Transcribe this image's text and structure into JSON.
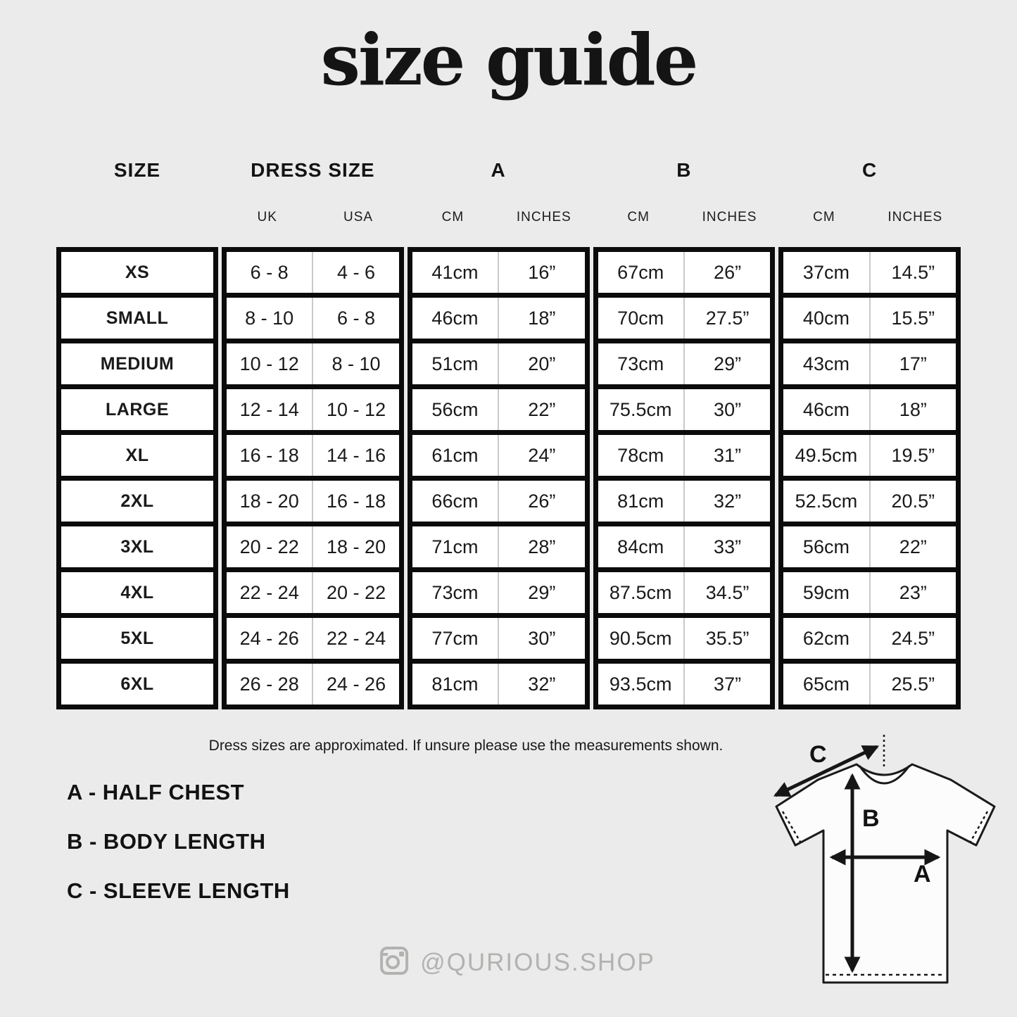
{
  "page": {
    "title": "size guide",
    "background": "#ebebeb"
  },
  "table": {
    "groups": [
      {
        "label": "SIZE",
        "sub": []
      },
      {
        "label": "DRESS SIZE",
        "sub": [
          "UK",
          "USA"
        ]
      },
      {
        "label": "A",
        "sub": [
          "CM",
          "INCHES"
        ]
      },
      {
        "label": "B",
        "sub": [
          "CM",
          "INCHES"
        ]
      },
      {
        "label": "C",
        "sub": [
          "CM",
          "INCHES"
        ]
      }
    ],
    "rows": [
      {
        "size": "XS",
        "values": [
          "6 - 8",
          "4 - 6",
          "41cm",
          "16”",
          "67cm",
          "26”",
          "37cm",
          "14.5”"
        ]
      },
      {
        "size": "SMALL",
        "values": [
          "8 - 10",
          "6 - 8",
          "46cm",
          "18”",
          "70cm",
          "27.5”",
          "40cm",
          "15.5”"
        ]
      },
      {
        "size": "MEDIUM",
        "values": [
          "10 - 12",
          "8 - 10",
          "51cm",
          "20”",
          "73cm",
          "29”",
          "43cm",
          "17”"
        ]
      },
      {
        "size": "LARGE",
        "values": [
          "12 - 14",
          "10 - 12",
          "56cm",
          "22”",
          "75.5cm",
          "30”",
          "46cm",
          "18”"
        ]
      },
      {
        "size": "XL",
        "values": [
          "16 - 18",
          "14 - 16",
          "61cm",
          "24”",
          "78cm",
          "31”",
          "49.5cm",
          "19.5”"
        ]
      },
      {
        "size": "2XL",
        "values": [
          "18 - 20",
          "16 - 18",
          "66cm",
          "26”",
          "81cm",
          "32”",
          "52.5cm",
          "20.5”"
        ]
      },
      {
        "size": "3XL",
        "values": [
          "20 - 22",
          "18 - 20",
          "71cm",
          "28”",
          "84cm",
          "33”",
          "56cm",
          "22”"
        ]
      },
      {
        "size": "4XL",
        "values": [
          "22 - 24",
          "20 - 22",
          "73cm",
          "29”",
          "87.5cm",
          "34.5”",
          "59cm",
          "23”"
        ]
      },
      {
        "size": "5XL",
        "values": [
          "24 - 26",
          "22 - 24",
          "77cm",
          "30”",
          "90.5cm",
          "35.5”",
          "62cm",
          "24.5”"
        ]
      },
      {
        "size": "6XL",
        "values": [
          "26 - 28",
          "24 - 26",
          "81cm",
          "32”",
          "93.5cm",
          "37”",
          "65cm",
          "25.5”"
        ]
      }
    ]
  },
  "note": "Dress sizes are approximated. If unsure please use the measurements shown.",
  "legend": {
    "a": "A - HALF CHEST",
    "b": "B - BODY LENGTH",
    "c": "C - SLEEVE LENGTH"
  },
  "social": {
    "handle": "@QURIOUS.SHOP",
    "icon": "instagram-icon",
    "color": "#b3b2b0"
  },
  "diagram": {
    "label_a": "A",
    "label_b": "B",
    "label_c": "C"
  },
  "colors": {
    "table_border": "#0b0b0b",
    "cell_bg": "#ffffff",
    "divider": "#c9c9c9",
    "text": "#141414"
  }
}
